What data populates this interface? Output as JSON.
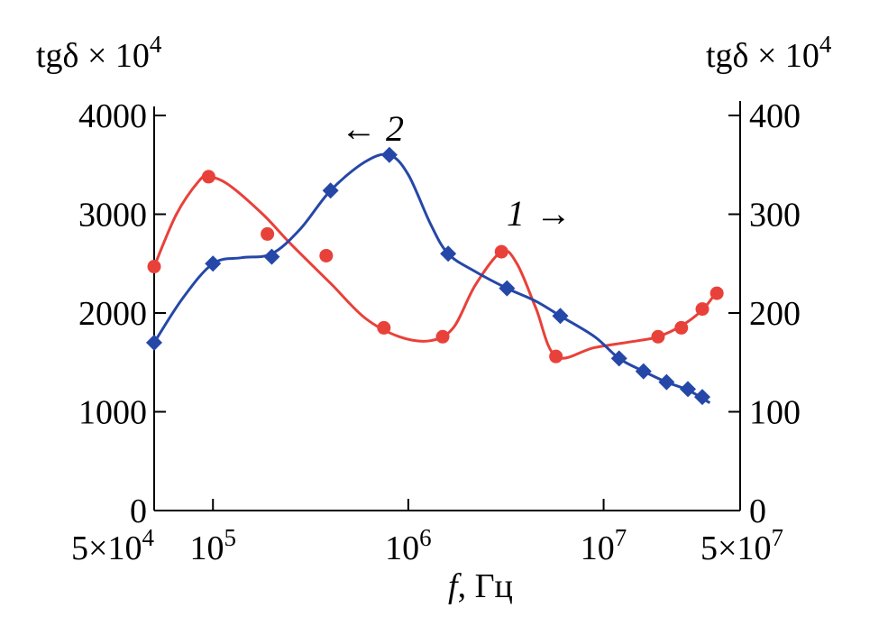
{
  "chart_data": {
    "type": "line",
    "xscale": "log",
    "xlim": [
      50000,
      50000000
    ],
    "x_ticks": [
      {
        "value": 50000,
        "mantissa": "5×10",
        "exp": "4"
      },
      {
        "value": 100000,
        "mantissa": "10",
        "exp": "5"
      },
      {
        "value": 1000000,
        "mantissa": "10",
        "exp": "6"
      },
      {
        "value": 10000000,
        "mantissa": "10",
        "exp": "7"
      },
      {
        "value": 50000000,
        "mantissa": "5×10",
        "exp": "7"
      }
    ],
    "xlabel_italic": "f",
    "xlabel_rest": ", Гц",
    "left_axis": {
      "label_base": "tgδ × 10",
      "label_exp": "4",
      "ylim": [
        0,
        4000
      ],
      "ticks": [
        "0",
        "1000",
        "2000",
        "3000",
        "4000"
      ]
    },
    "right_axis": {
      "label_base": "tgδ × 10",
      "label_exp": "4",
      "ylim": [
        0,
        400
      ],
      "ticks": [
        "0",
        "100",
        "200",
        "300",
        "400"
      ]
    },
    "series": [
      {
        "id": "1",
        "axis": "right",
        "color": "#e8413a",
        "marker": "circle",
        "points": [
          [
            50000,
            247
          ],
          [
            95000,
            338
          ],
          [
            190000,
            280
          ],
          [
            380000,
            258
          ],
          [
            750000,
            185
          ],
          [
            1500000,
            176
          ],
          [
            3000000,
            262
          ],
          [
            5700000,
            156
          ],
          [
            19000000,
            176
          ],
          [
            25000000,
            185
          ],
          [
            32000000,
            204
          ],
          [
            38000000,
            220
          ]
        ],
        "curve": [
          [
            50000,
            247
          ],
          [
            65000,
            300
          ],
          [
            85000,
            334
          ],
          [
            95000,
            338
          ],
          [
            120000,
            330
          ],
          [
            180000,
            300
          ],
          [
            250000,
            270
          ],
          [
            400000,
            230
          ],
          [
            600000,
            195
          ],
          [
            900000,
            176
          ],
          [
            1300000,
            172
          ],
          [
            1700000,
            185
          ],
          [
            2200000,
            228
          ],
          [
            3000000,
            262
          ],
          [
            3600000,
            250
          ],
          [
            4500000,
            205
          ],
          [
            5700000,
            156
          ],
          [
            9000000,
            165
          ],
          [
            15000000,
            172
          ],
          [
            19000000,
            176
          ],
          [
            25000000,
            187
          ],
          [
            32000000,
            203
          ],
          [
            38000000,
            222
          ]
        ]
      },
      {
        "id": "2",
        "axis": "left",
        "color": "#2547a8",
        "marker": "diamond",
        "points": [
          [
            50000,
            1700
          ],
          [
            100000,
            2500
          ],
          [
            200000,
            2570
          ],
          [
            400000,
            3240
          ],
          [
            800000,
            3600
          ],
          [
            1600000,
            2600
          ],
          [
            3200000,
            2250
          ],
          [
            6000000,
            1970
          ],
          [
            12000000,
            1540
          ],
          [
            16000000,
            1410
          ],
          [
            21000000,
            1300
          ],
          [
            27000000,
            1230
          ],
          [
            32000000,
            1150
          ]
        ],
        "curve": [
          [
            50000,
            1700
          ],
          [
            70000,
            2150
          ],
          [
            100000,
            2500
          ],
          [
            140000,
            2560
          ],
          [
            200000,
            2600
          ],
          [
            280000,
            2850
          ],
          [
            400000,
            3240
          ],
          [
            600000,
            3530
          ],
          [
            800000,
            3600
          ],
          [
            1000000,
            3400
          ],
          [
            1300000,
            2900
          ],
          [
            1600000,
            2600
          ],
          [
            2200000,
            2420
          ],
          [
            3200000,
            2250
          ],
          [
            4500000,
            2120
          ],
          [
            6000000,
            1970
          ],
          [
            9000000,
            1760
          ],
          [
            12000000,
            1540
          ],
          [
            16000000,
            1410
          ],
          [
            21000000,
            1300
          ],
          [
            27000000,
            1220
          ],
          [
            35000000,
            1090
          ]
        ]
      }
    ],
    "annotations": [
      {
        "series": "1",
        "number": "1",
        "arrow": "→"
      },
      {
        "series": "2",
        "number": "2",
        "arrow": "←"
      }
    ]
  }
}
